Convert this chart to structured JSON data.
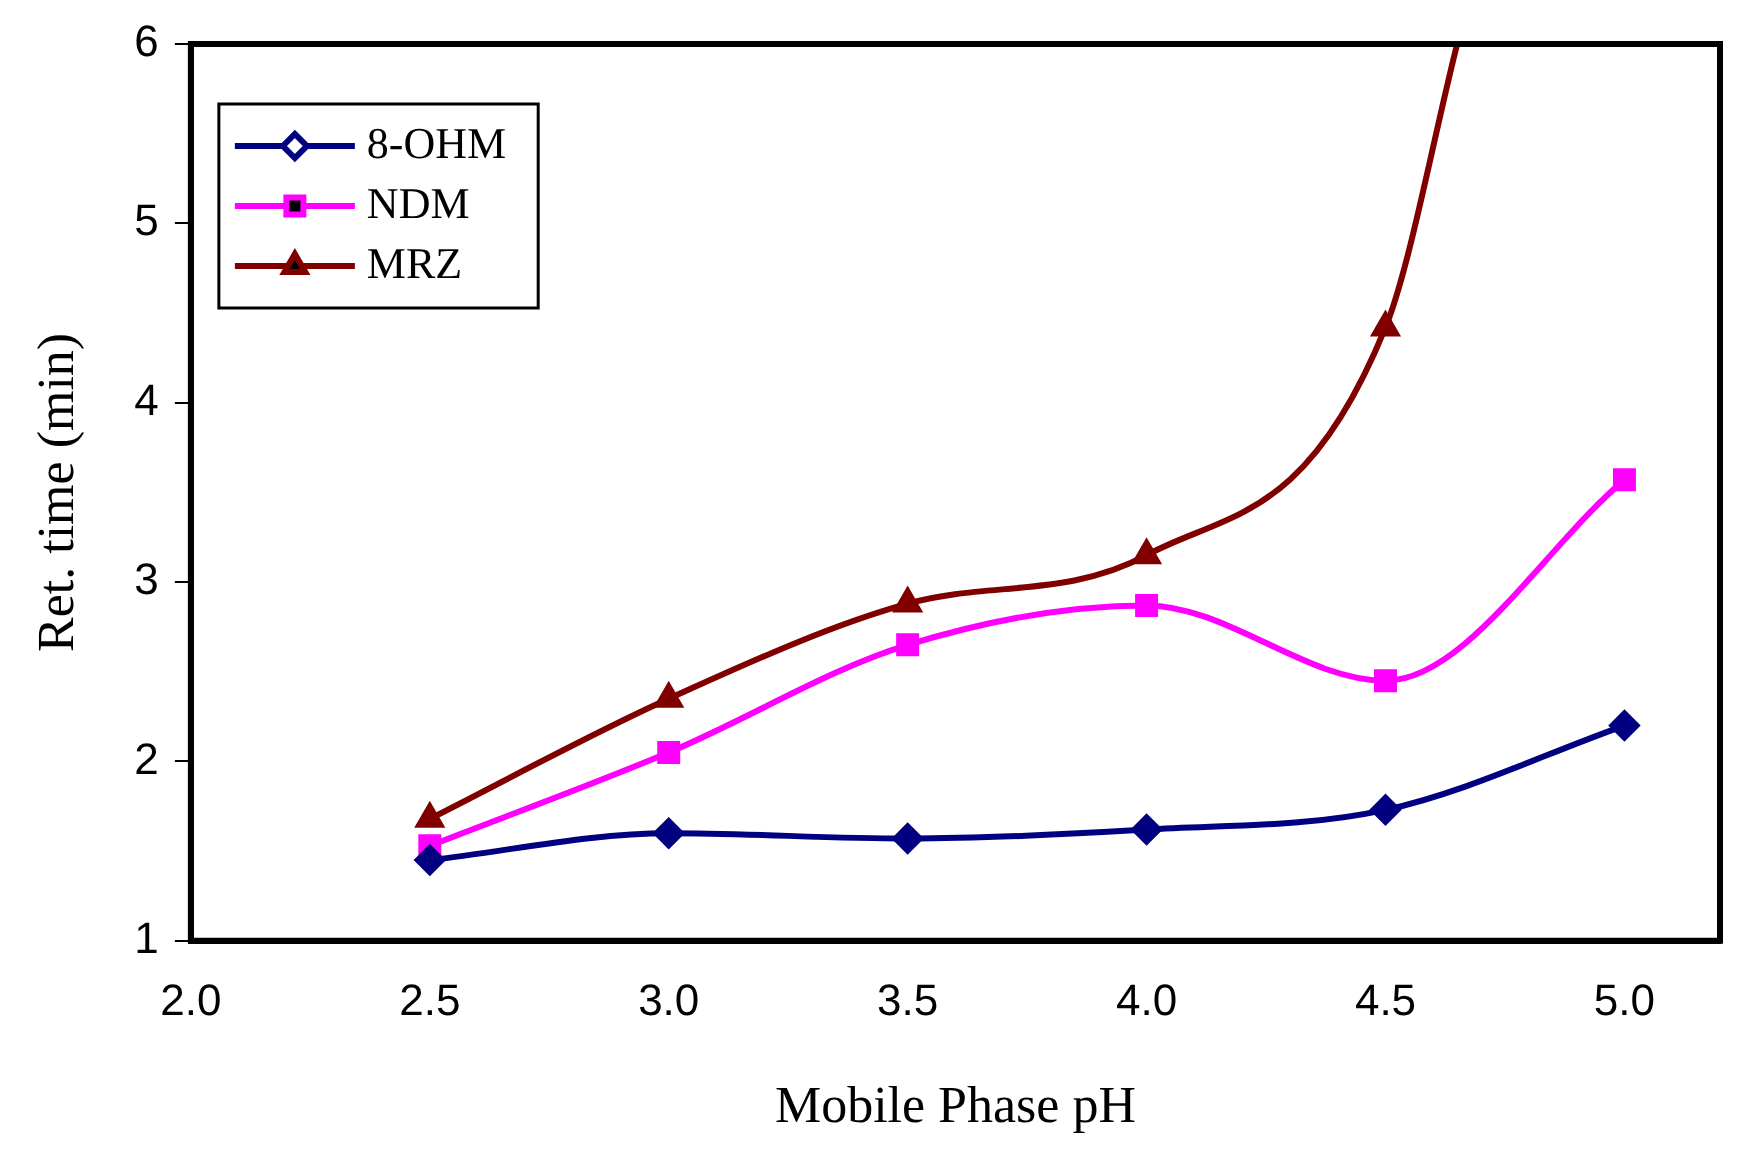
{
  "chart_data": {
    "type": "line",
    "xlabel": "Mobile Phase pH",
    "ylabel": "Ret. time (min)",
    "xlim": [
      2.0,
      5.2
    ],
    "xticks": [
      {
        "value": 2,
        "label": "2.0"
      },
      {
        "value": 2.5,
        "label": "2.5"
      },
      {
        "value": 3,
        "label": "3.0"
      },
      {
        "value": 3.5,
        "label": "3.5"
      },
      {
        "value": 4,
        "label": "4.0"
      },
      {
        "value": 4.5,
        "label": "4.5"
      },
      {
        "value": 5,
        "label": "5.0"
      }
    ],
    "ylim": [
      1,
      6
    ],
    "yticks": [
      1,
      2,
      3,
      4,
      5,
      6
    ],
    "grid": false,
    "legend": "top left",
    "series": [
      {
        "name": "8-OHM",
        "color": "#000080",
        "marker": "diamond",
        "x": [
          2.5,
          3.0,
          3.5,
          4.0,
          4.5,
          5.0
        ],
        "values": [
          1.45,
          1.6,
          1.57,
          1.62,
          1.73,
          2.2
        ]
      },
      {
        "name": "NDM",
        "color": "#ff00ff",
        "marker": "square",
        "x": [
          2.5,
          3.0,
          3.5,
          4.0,
          4.5,
          5.0
        ],
        "values": [
          1.53,
          2.05,
          2.65,
          2.87,
          2.45,
          3.57
        ]
      },
      {
        "name": "MRZ",
        "color": "#800000",
        "marker": "triangle",
        "x": [
          2.5,
          3.0,
          3.5,
          4.0,
          4.5,
          4.65
        ],
        "values": [
          1.68,
          2.35,
          2.88,
          3.15,
          4.42,
          6.0
        ]
      }
    ]
  }
}
